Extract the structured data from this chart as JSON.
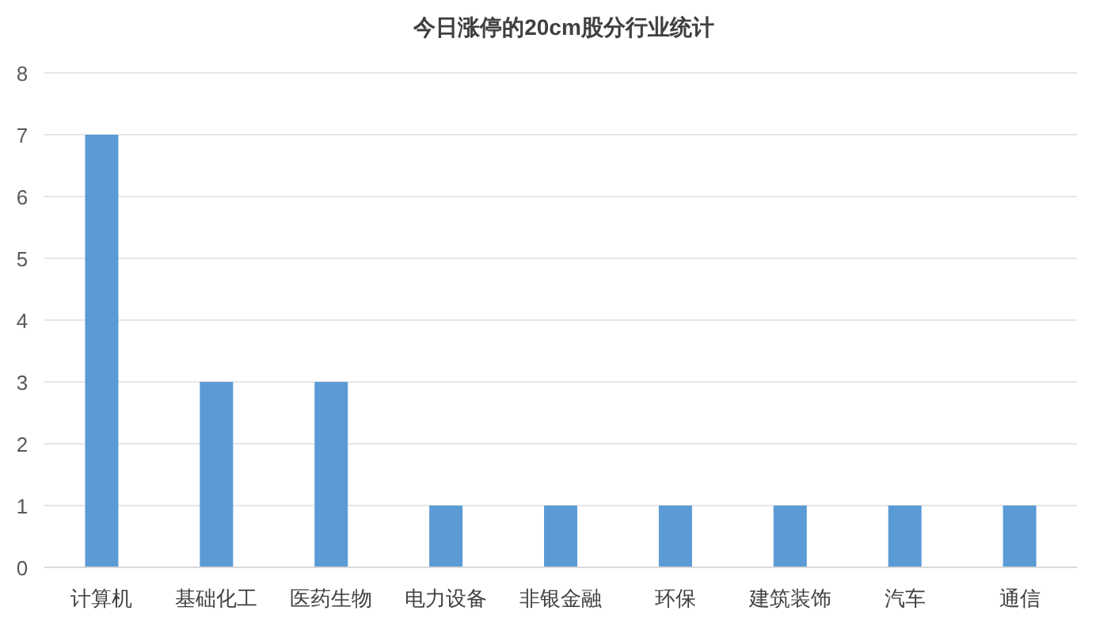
{
  "chart_data": {
    "type": "bar",
    "title": "今日涨停的20cm股分行业统计",
    "categories": [
      "计算机",
      "基础化工",
      "医药生物",
      "电力设备",
      "非银金融",
      "环保",
      "建筑装饰",
      "汽车",
      "通信"
    ],
    "values": [
      7,
      3,
      3,
      1,
      1,
      1,
      1,
      1,
      1
    ],
    "color": "#5b9bd5",
    "ylim": [
      0,
      8
    ],
    "yticks": [
      0,
      1,
      2,
      3,
      4,
      5,
      6,
      7,
      8
    ],
    "grid": "y"
  }
}
